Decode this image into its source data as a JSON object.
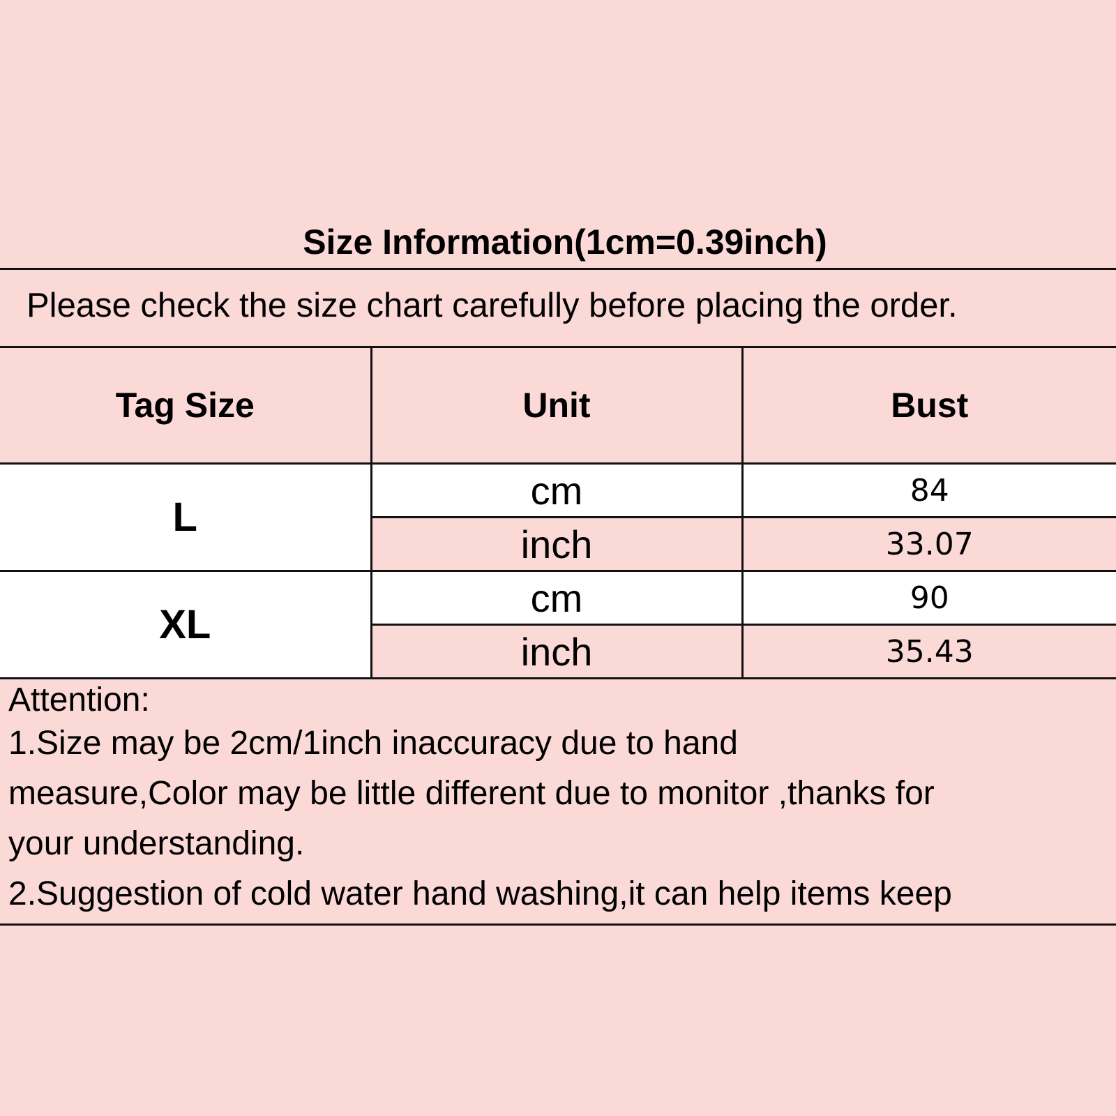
{
  "title": "Size Information(1cm=0.39inch)",
  "subtitle": "Please check the size chart carefully before placing the order.",
  "table": {
    "headers": [
      "Tag Size",
      "Unit",
      "Bust"
    ],
    "rows": [
      {
        "size": "L",
        "cm_unit": "cm",
        "cm_value": "84",
        "inch_unit": "inch",
        "inch_value": "33.07"
      },
      {
        "size": "XL",
        "cm_unit": "cm",
        "cm_value": "90",
        "inch_unit": "inch",
        "inch_value": "35.43"
      }
    ]
  },
  "attention": {
    "heading": "Attention:",
    "lines": [
      "1.Size may be 2cm/1inch inaccuracy due to hand",
      "measure,Color may be little different due to monitor ,thanks for",
      "your understanding.",
      "2.Suggestion of cold water hand washing,it can help items keep"
    ]
  },
  "colors": {
    "background": "#fad9d7",
    "row_white": "#ffffff",
    "border": "#111111"
  }
}
